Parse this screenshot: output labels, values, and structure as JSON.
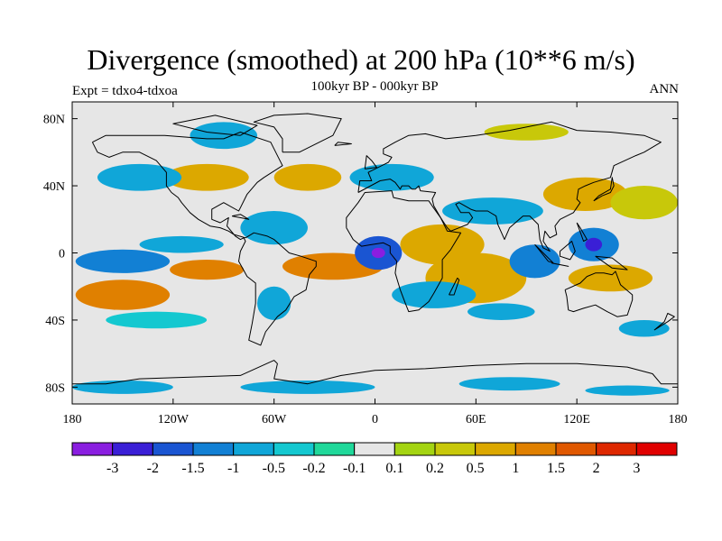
{
  "header": {
    "title": "Divergence (smoothed) at 200 hPa (10**6 m/s)",
    "subtitle": "100kyr BP - 000kyr BP",
    "left_label": "Expt = tdxo4-tdxoa",
    "right_label": "ANN"
  },
  "chart_data": {
    "type": "heatmap",
    "title": "Divergence (smoothed) at 200 hPa (10**6 m/s)",
    "subtitle": "100kyr BP - 000kyr BP",
    "projection": "cylindrical equidistant (global map)",
    "x_axis": {
      "range": [
        -180,
        180
      ],
      "ticks": [
        -180,
        -120,
        -60,
        0,
        60,
        120,
        180
      ],
      "tick_labels": [
        "180",
        "120W",
        "60W",
        "0",
        "60E",
        "120E",
        "180"
      ]
    },
    "y_axis": {
      "range": [
        -90,
        90
      ],
      "ticks": [
        80,
        40,
        0,
        -40,
        -80
      ],
      "tick_labels": [
        "80N",
        "40N",
        "0",
        "40S",
        "80S"
      ]
    },
    "colorbar": {
      "placement": "bottom",
      "levels": [
        "-3",
        "-2",
        "-1.5",
        "-1",
        "-0.5",
        "-0.2",
        "-0.1",
        "0.1",
        "0.2",
        "0.5",
        "1",
        "1.5",
        "2",
        "3"
      ],
      "colors": [
        "#8a1ee0",
        "#3a1fd6",
        "#1a55d2",
        "#1280d4",
        "#10a6d8",
        "#14c8d0",
        "#20d89a",
        "#e6e6e6",
        "#a4d412",
        "#c8c80a",
        "#dca800",
        "#e08000",
        "#e05800",
        "#de2800",
        "#e00000"
      ]
    },
    "regions": [
      {
        "lon": -150,
        "lat": -5,
        "rx": 28,
        "ry": 7,
        "level": "-1"
      },
      {
        "lon": -150,
        "lat": -25,
        "rx": 28,
        "ry": 9,
        "level": "1"
      },
      {
        "lon": -100,
        "lat": -10,
        "rx": 22,
        "ry": 6,
        "level": "1"
      },
      {
        "lon": -115,
        "lat": 5,
        "rx": 25,
        "ry": 5,
        "level": "-0.5"
      },
      {
        "lon": -60,
        "lat": 15,
        "rx": 20,
        "ry": 10,
        "level": "-0.5"
      },
      {
        "lon": -25,
        "lat": -8,
        "rx": 30,
        "ry": 8,
        "level": "1"
      },
      {
        "lon": -60,
        "lat": -30,
        "rx": 10,
        "ry": 10,
        "level": "-0.5"
      },
      {
        "lon": 2,
        "lat": 0,
        "rx": 14,
        "ry": 10,
        "level": "-1.5"
      },
      {
        "lon": 2,
        "lat": 0,
        "rx": 4,
        "ry": 3,
        "level": "-3"
      },
      {
        "lon": 40,
        "lat": 5,
        "rx": 25,
        "ry": 12,
        "level": "0.5"
      },
      {
        "lon": 60,
        "lat": -15,
        "rx": 30,
        "ry": 15,
        "level": "0.5"
      },
      {
        "lon": 35,
        "lat": -25,
        "rx": 25,
        "ry": 8,
        "level": "-0.5"
      },
      {
        "lon": 75,
        "lat": -35,
        "rx": 20,
        "ry": 5,
        "level": "-0.5"
      },
      {
        "lon": 95,
        "lat": -5,
        "rx": 15,
        "ry": 10,
        "level": "-1"
      },
      {
        "lon": 130,
        "lat": 5,
        "rx": 15,
        "ry": 10,
        "level": "-1"
      },
      {
        "lon": 130,
        "lat": 5,
        "rx": 5,
        "ry": 4,
        "level": "-2"
      },
      {
        "lon": 140,
        "lat": -15,
        "rx": 25,
        "ry": 8,
        "level": "0.5"
      },
      {
        "lon": 70,
        "lat": 25,
        "rx": 30,
        "ry": 8,
        "level": "-0.5"
      },
      {
        "lon": 125,
        "lat": 35,
        "rx": 25,
        "ry": 10,
        "level": "0.5"
      },
      {
        "lon": 160,
        "lat": 30,
        "rx": 20,
        "ry": 10,
        "level": "0.2"
      },
      {
        "lon": 10,
        "lat": 45,
        "rx": 25,
        "ry": 8,
        "level": "-0.5"
      },
      {
        "lon": -40,
        "lat": 45,
        "rx": 20,
        "ry": 8,
        "level": "0.5"
      },
      {
        "lon": -100,
        "lat": 45,
        "rx": 25,
        "ry": 8,
        "level": "0.5"
      },
      {
        "lon": -140,
        "lat": 45,
        "rx": 25,
        "ry": 8,
        "level": "-0.5"
      },
      {
        "lon": -90,
        "lat": 70,
        "rx": 20,
        "ry": 8,
        "level": "-0.5"
      },
      {
        "lon": 90,
        "lat": 72,
        "rx": 25,
        "ry": 5,
        "level": "0.2"
      },
      {
        "lon": -130,
        "lat": -40,
        "rx": 30,
        "ry": 5,
        "level": "-0.2"
      },
      {
        "lon": 160,
        "lat": -45,
        "rx": 15,
        "ry": 5,
        "level": "-0.5"
      },
      {
        "lon": -150,
        "lat": -80,
        "rx": 30,
        "ry": 4,
        "level": "-0.5"
      },
      {
        "lon": -40,
        "lat": -80,
        "rx": 40,
        "ry": 4,
        "level": "-0.5"
      },
      {
        "lon": 80,
        "lat": -78,
        "rx": 30,
        "ry": 4,
        "level": "-0.5"
      },
      {
        "lon": 150,
        "lat": -82,
        "rx": 25,
        "ry": 3,
        "level": "-0.5"
      }
    ]
  }
}
